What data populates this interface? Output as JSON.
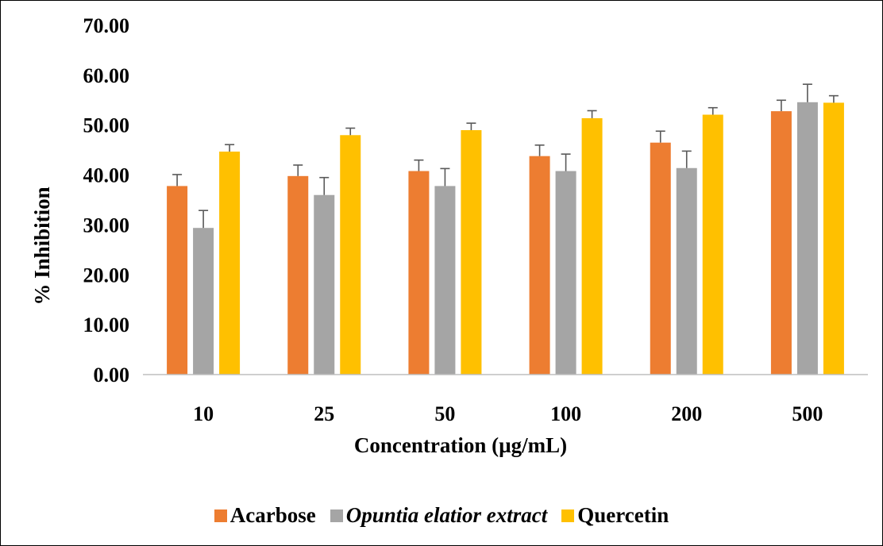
{
  "chart_data": {
    "type": "bar",
    "title": "",
    "xlabel": "Concentration (µg/mL)",
    "ylabel": "% Inhibition",
    "ylim": [
      0,
      70
    ],
    "yticks": [
      "0.00",
      "10.00",
      "20.00",
      "30.00",
      "40.00",
      "50.00",
      "60.00",
      "70.00"
    ],
    "categories": [
      "10",
      "25",
      "50",
      "100",
      "200",
      "500"
    ],
    "series": [
      {
        "name": "Acarbose",
        "color": "#ED7D31",
        "italic": false,
        "values": [
          37.8,
          39.8,
          40.8,
          43.8,
          46.5,
          52.8
        ],
        "errors": [
          2.3,
          2.2,
          2.2,
          2.2,
          2.3,
          2.2
        ]
      },
      {
        "name": "Opuntia elatior extract",
        "color": "#A5A5A5",
        "italic": true,
        "values": [
          29.4,
          36.0,
          37.8,
          40.8,
          41.4,
          54.6
        ],
        "errors": [
          3.5,
          3.5,
          3.5,
          3.4,
          3.4,
          3.6
        ]
      },
      {
        "name": "Quercetin",
        "color": "#FFC000",
        "italic": false,
        "values": [
          44.7,
          48.0,
          49.0,
          51.4,
          52.1,
          54.5
        ],
        "errors": [
          1.4,
          1.4,
          1.4,
          1.5,
          1.4,
          1.4
        ]
      }
    ],
    "grid": false,
    "legend_position": "bottom"
  }
}
